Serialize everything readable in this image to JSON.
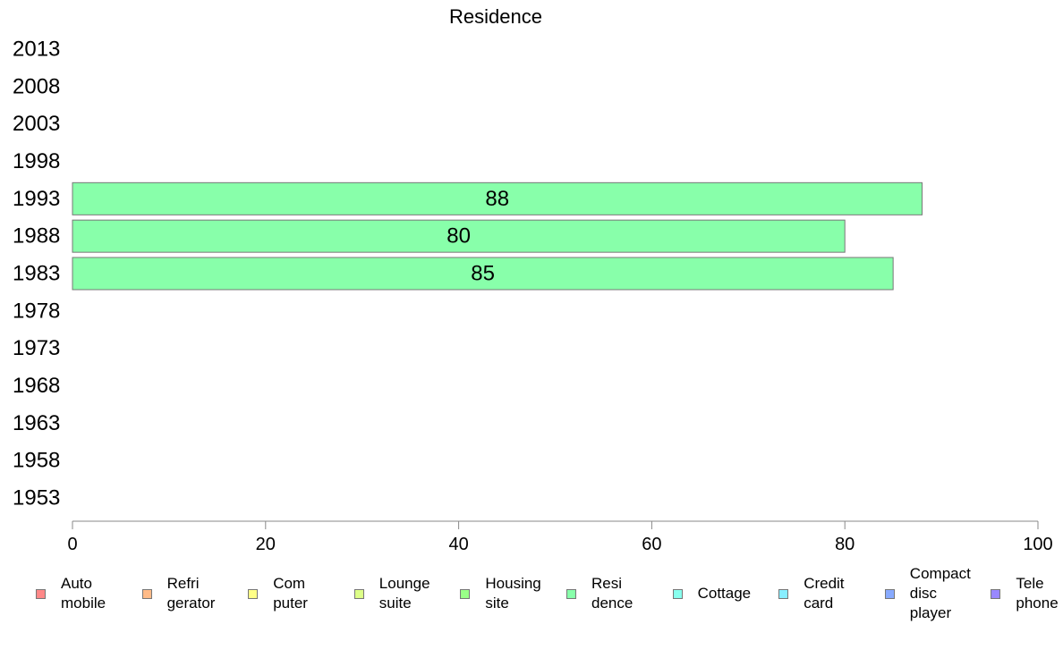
{
  "chart_data": {
    "type": "bar",
    "orientation": "horizontal",
    "title": "Residence",
    "categories": [
      "1953",
      "1958",
      "1963",
      "1968",
      "1973",
      "1978",
      "1983",
      "1988",
      "1993",
      "1998",
      "2003",
      "2008",
      "2013"
    ],
    "series": [
      {
        "name": "Resi\ndence",
        "values": [
          null,
          null,
          null,
          null,
          null,
          null,
          85,
          80,
          88,
          null,
          null,
          null,
          null
        ],
        "color": "#88ffaa"
      }
    ],
    "xlim": [
      0,
      100
    ],
    "xticks": [
      0,
      20,
      40,
      60,
      80,
      100
    ],
    "grid": false,
    "legend_position": "bottom",
    "legend": [
      {
        "label": "Auto\nmobile",
        "color": "#ff8888"
      },
      {
        "label": "Refri\ngerator",
        "color": "#ffbb88"
      },
      {
        "label": "Com\nputer",
        "color": "#ffff88"
      },
      {
        "label": "Lounge\nsuite",
        "color": "#ddff88"
      },
      {
        "label": "Housing\nsite",
        "color": "#99ff88"
      },
      {
        "label": "Resi\ndence",
        "color": "#88ffaa"
      },
      {
        "label": "Cottage",
        "color": "#88ffee"
      },
      {
        "label": "Credit\ncard",
        "color": "#88eeff"
      },
      {
        "label": "Compact\ndisc\nplayer",
        "color": "#88aaff"
      },
      {
        "label": "Tele\nphone",
        "color": "#9988ff"
      }
    ]
  }
}
